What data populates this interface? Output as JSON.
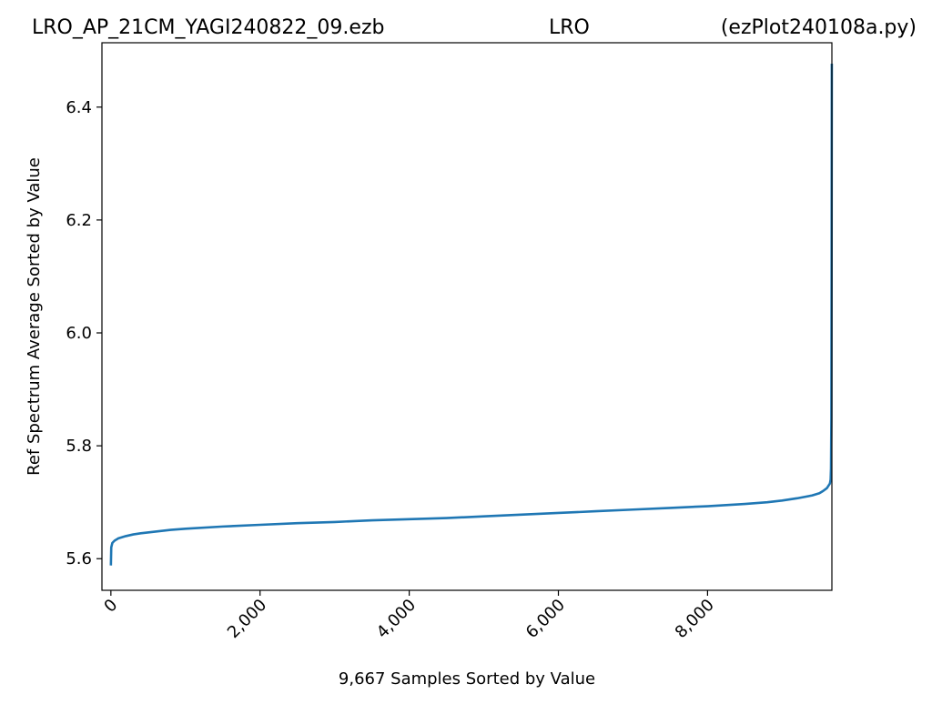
{
  "title": {
    "left": "LRO_AP_21CM_YAGI240822_09.ezb",
    "center": "LRO",
    "right": "(ezPlot240108a.py)"
  },
  "chart_data": {
    "type": "line",
    "xlabel": "9,667 Samples Sorted by Value",
    "ylabel": "Ref Spectrum Average Sorted by Value",
    "xlim": [
      -120,
      9667
    ],
    "ylim": [
      5.544,
      6.514
    ],
    "x_ticks": [
      0,
      2000,
      4000,
      6000,
      8000
    ],
    "x_tick_labels": [
      "0",
      "2,000",
      "4,000",
      "6,000",
      "8,000"
    ],
    "y_ticks": [
      5.6,
      5.8,
      6.0,
      6.2,
      6.4
    ],
    "y_tick_labels": [
      "5.6",
      "5.8",
      "6.0",
      "6.2",
      "6.4"
    ],
    "grid": false,
    "series": [
      {
        "color": "#1f77b4",
        "x": [
          0,
          5,
          20,
          50,
          100,
          200,
          300,
          400,
          600,
          800,
          1000,
          1500,
          2000,
          2500,
          3000,
          3500,
          4000,
          4500,
          5000,
          5500,
          6000,
          6500,
          7000,
          7500,
          8000,
          8500,
          8800,
          9000,
          9200,
          9400,
          9500,
          9550,
          9600,
          9620,
          9640,
          9650,
          9655,
          9660,
          9663,
          9666
        ],
        "y": [
          5.588,
          5.62,
          5.628,
          5.632,
          5.636,
          5.64,
          5.643,
          5.645,
          5.648,
          5.651,
          5.653,
          5.657,
          5.66,
          5.663,
          5.665,
          5.668,
          5.67,
          5.672,
          5.675,
          5.678,
          5.681,
          5.684,
          5.687,
          5.69,
          5.693,
          5.697,
          5.7,
          5.703,
          5.707,
          5.712,
          5.716,
          5.72,
          5.725,
          5.729,
          5.733,
          5.74,
          5.76,
          5.85,
          6.1,
          6.477
        ]
      }
    ]
  }
}
